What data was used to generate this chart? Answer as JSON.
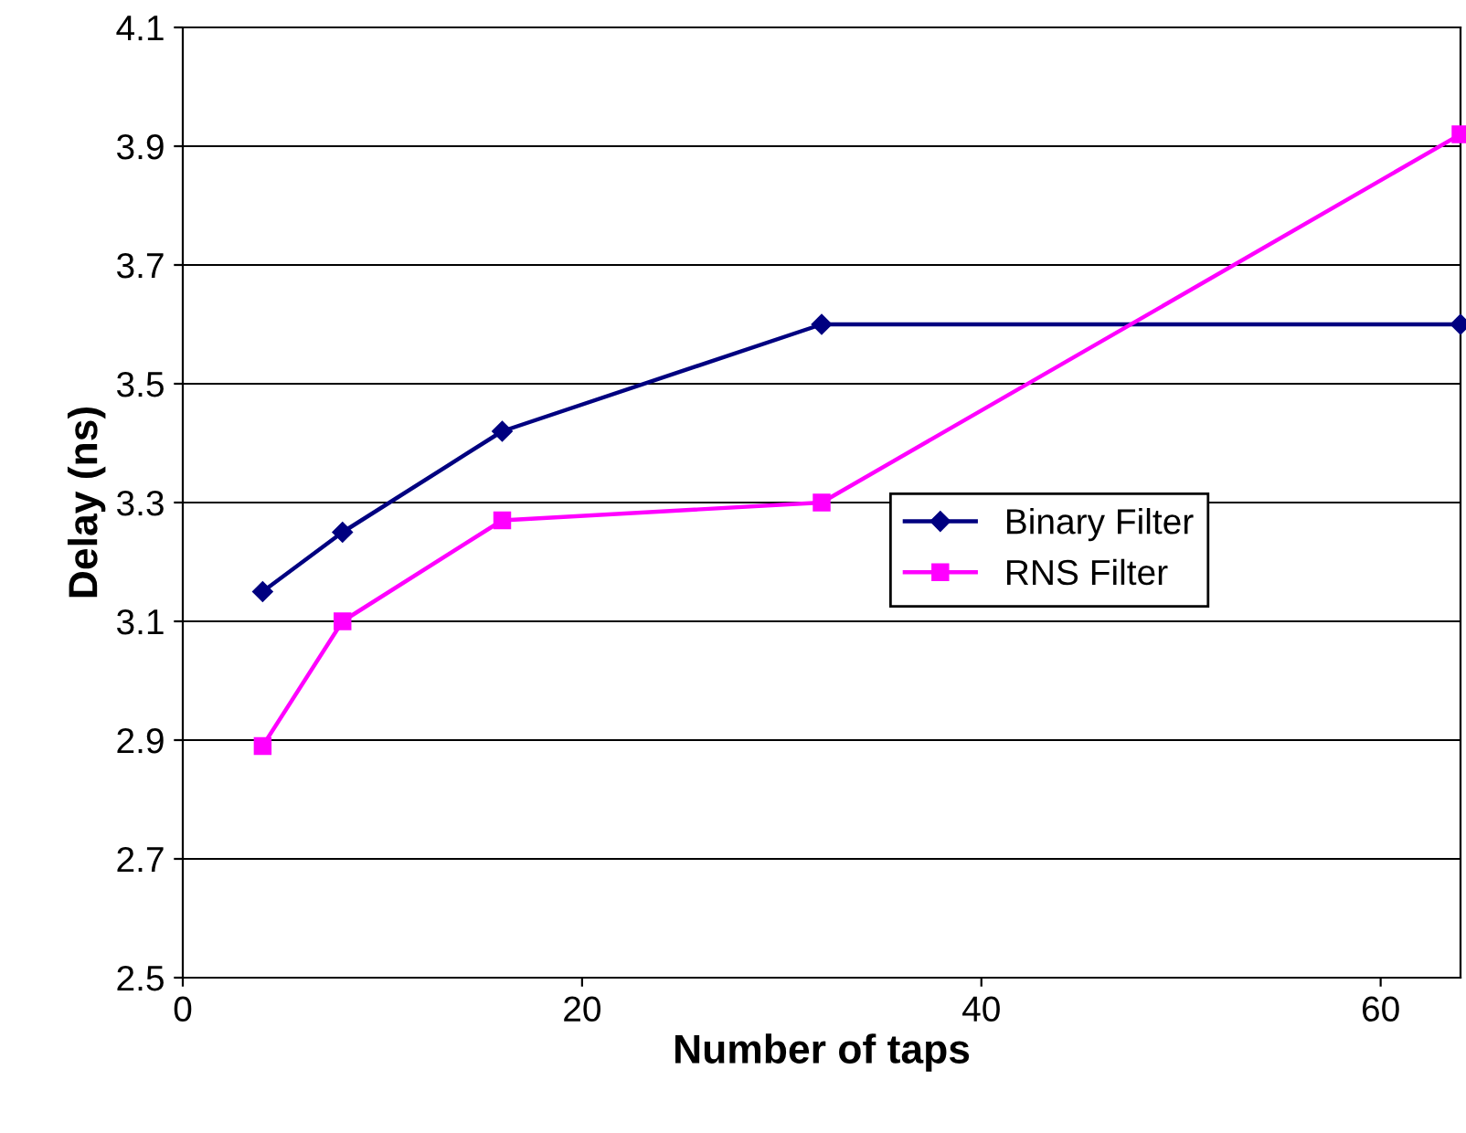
{
  "chart_data": {
    "type": "line",
    "xlabel": "Number of taps",
    "ylabel": "Delay (ns)",
    "x": [
      4,
      8,
      16,
      32,
      64
    ],
    "series": [
      {
        "name": "Binary Filter",
        "color": "#000080",
        "marker": "diamond",
        "values": [
          3.15,
          3.25,
          3.42,
          3.6,
          3.6
        ]
      },
      {
        "name": "RNS Filter",
        "color": "#ff00ff",
        "marker": "square",
        "values": [
          2.89,
          3.1,
          3.27,
          3.3,
          3.92
        ]
      }
    ],
    "xlim": [
      0,
      64
    ],
    "xticks": [
      0,
      20,
      40,
      60
    ],
    "ylim": [
      2.5,
      4.1
    ],
    "yticks": [
      2.5,
      2.7,
      2.9,
      3.1,
      3.3,
      3.5,
      3.7,
      3.9,
      4.1
    ],
    "grid": "y",
    "legend": "right"
  }
}
